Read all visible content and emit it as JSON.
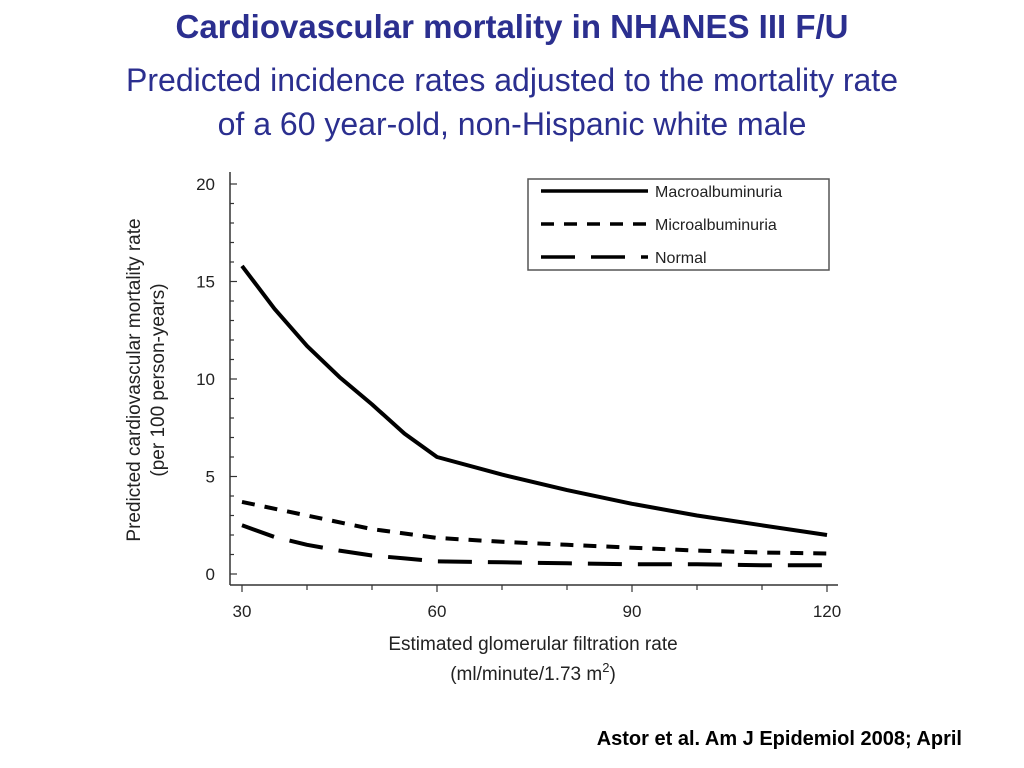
{
  "slide": {
    "title": "Cardiovascular mortality in NHANES III F/U",
    "subtitle_line1": "Predicted incidence rates adjusted to the mortality rate",
    "subtitle_line2": "of a 60 year-old, non-Hispanic white male",
    "citation": "Astor et al. Am J Epidemiol 2008; April",
    "title_color": "#2b2f8f"
  },
  "chart_data": {
    "type": "line",
    "ylabel_line1": "Predicted cardiovascular mortality rate",
    "ylabel_line2": "(per 100 person-years)",
    "xlabel_line1": "Estimated glomerular filtration rate",
    "xlabel_line2_prefix": "(ml/minute/1.73 m",
    "xlabel_line2_sup": "2",
    "xlabel_line2_suffix": ")",
    "xlim": [
      30,
      120
    ],
    "ylim": [
      0,
      20
    ],
    "x_ticks": [
      "30",
      "60",
      "90",
      "120"
    ],
    "y_ticks": [
      "0",
      "5",
      "10",
      "15",
      "20"
    ],
    "legend_position": "top-right",
    "series": [
      {
        "name": "Macroalbuminuria",
        "style": "solid",
        "x": [
          30,
          35,
          40,
          45,
          50,
          55,
          60,
          70,
          80,
          90,
          100,
          110,
          120
        ],
        "y": [
          15.8,
          13.6,
          11.7,
          10.1,
          8.7,
          7.2,
          6.0,
          5.1,
          4.3,
          3.6,
          3.0,
          2.5,
          2.0
        ]
      },
      {
        "name": "Microalbuminuria",
        "style": "dashed",
        "x": [
          30,
          40,
          50,
          60,
          70,
          80,
          90,
          100,
          110,
          120
        ],
        "y": [
          3.7,
          3.0,
          2.3,
          1.85,
          1.65,
          1.5,
          1.35,
          1.2,
          1.1,
          1.05
        ]
      },
      {
        "name": "Normal",
        "style": "long-dashed",
        "x": [
          30,
          35,
          40,
          45,
          50,
          55,
          60,
          70,
          80,
          90,
          100,
          110,
          120
        ],
        "y": [
          2.5,
          1.9,
          1.5,
          1.2,
          0.95,
          0.8,
          0.65,
          0.6,
          0.55,
          0.5,
          0.5,
          0.45,
          0.45
        ]
      }
    ]
  }
}
